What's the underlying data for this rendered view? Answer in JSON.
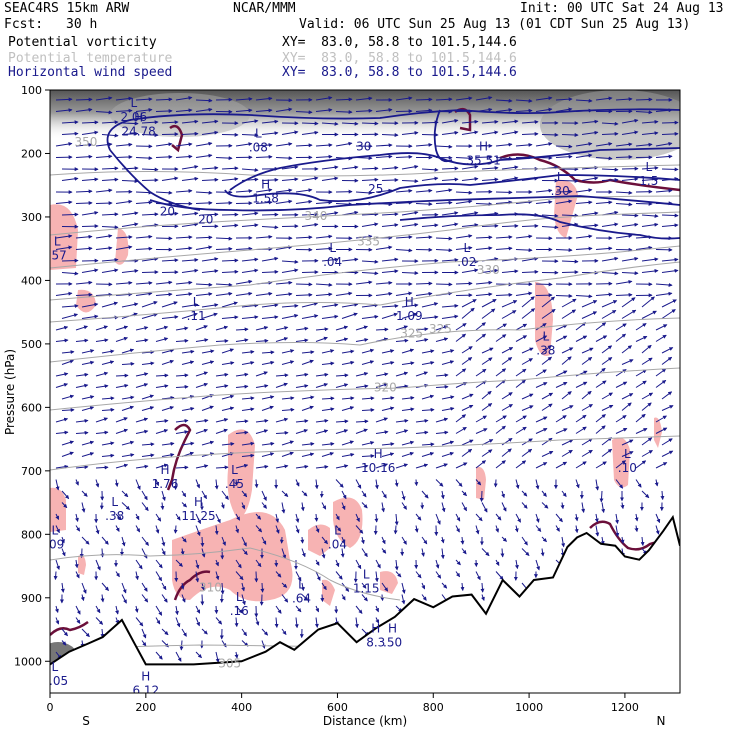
{
  "header": {
    "model": "SEAC4RS 15km ARW",
    "center": "NCAR/MMM",
    "init": "Init: 00 UTC Sat 24 Aug 13",
    "fcst_label": "Fcst:",
    "fcst_value": "30 h",
    "valid": "Valid: 06 UTC Sun 25 Aug 13 (01 CDT Sun 25 Aug 13)",
    "fields": [
      {
        "name": "Potential vorticity",
        "xy": "XY=  83.0, 58.8 to 101.5,144.6",
        "color": "#000000"
      },
      {
        "name": "Potential temperature",
        "xy": "XY=  83.0, 58.8 to 101.5,144.6",
        "color": "#c0c0c0"
      },
      {
        "name": "Horizontal wind speed",
        "xy": "XY=  83.0, 58.8 to 101.5,144.6",
        "color": "#1a1a8c"
      }
    ]
  },
  "chart_data": {
    "type": "cross-section",
    "xlabel": "Distance (km)",
    "ylabel": "Pressure (hPa)",
    "xlim": [
      0,
      1315
    ],
    "ylim": [
      1050,
      100
    ],
    "x_ticks": [
      0,
      200,
      400,
      600,
      800,
      1000,
      1200
    ],
    "y_ticks": [
      100,
      200,
      300,
      400,
      500,
      600,
      700,
      800,
      900,
      1000
    ],
    "end_labels": {
      "left": "S",
      "right": "N"
    },
    "colors": {
      "pv_fill": "#f7b3b3",
      "pv_line": "#6b0f3a",
      "wind": "#1a1a8c",
      "theta": "#a8a8a8",
      "terrain": "#000000"
    },
    "terrain": [
      [
        0,
        1005
      ],
      [
        40,
        985
      ],
      [
        80,
        972
      ],
      [
        110,
        962
      ],
      [
        150,
        935
      ],
      [
        175,
        970
      ],
      [
        200,
        1005
      ],
      [
        300,
        1005
      ],
      [
        400,
        1000
      ],
      [
        450,
        985
      ],
      [
        480,
        970
      ],
      [
        510,
        982
      ],
      [
        560,
        950
      ],
      [
        600,
        940
      ],
      [
        640,
        970
      ],
      [
        680,
        948
      ],
      [
        720,
        930
      ],
      [
        760,
        902
      ],
      [
        800,
        915
      ],
      [
        840,
        898
      ],
      [
        880,
        895
      ],
      [
        910,
        925
      ],
      [
        945,
        872
      ],
      [
        980,
        898
      ],
      [
        1010,
        872
      ],
      [
        1050,
        868
      ],
      [
        1080,
        820
      ],
      [
        1100,
        805
      ],
      [
        1120,
        798
      ],
      [
        1150,
        815
      ],
      [
        1180,
        818
      ],
      [
        1200,
        835
      ],
      [
        1230,
        840
      ],
      [
        1250,
        825
      ],
      [
        1280,
        795
      ],
      [
        1300,
        773
      ],
      [
        1315,
        818
      ]
    ],
    "pv_highs_lows": [
      {
        "t": "L",
        "v": "2.06",
        "x": 175,
        "p": 127
      },
      {
        "t": "H",
        "v": "24.78",
        "x": 185,
        "p": 150
      },
      {
        "t": "L",
        "v": ".08",
        "x": 435,
        "p": 175
      },
      {
        "t": "H",
        "v": "1.58",
        "x": 450,
        "p": 255
      },
      {
        "t": "H",
        "v": "35.51",
        "x": 905,
        "p": 195
      },
      {
        "t": "L",
        "v": "1.5",
        "x": 1250,
        "p": 228
      },
      {
        "t": "L",
        "v": ".30",
        "x": 1065,
        "p": 243
      },
      {
        "t": "L",
        "v": ".57",
        "x": 15,
        "p": 345
      },
      {
        "t": "L",
        "v": ".04",
        "x": 590,
        "p": 355
      },
      {
        "t": "L",
        "v": ".02",
        "x": 870,
        "p": 355
      },
      {
        "t": "L",
        "v": ".11",
        "x": 305,
        "p": 440
      },
      {
        "t": "H",
        "v": "1.09",
        "x": 750,
        "p": 440
      },
      {
        "t": "L",
        "v": ".38",
        "x": 1035,
        "p": 495
      },
      {
        "t": "H",
        "v": "10.16",
        "x": 685,
        "p": 680
      },
      {
        "t": "L",
        "v": ".10",
        "x": 1205,
        "p": 680
      },
      {
        "t": "H",
        "v": "1.76",
        "x": 240,
        "p": 705
      },
      {
        "t": "L",
        "v": ".45",
        "x": 385,
        "p": 705
      },
      {
        "t": "L",
        "v": ".38",
        "x": 135,
        "p": 755
      },
      {
        "t": "H",
        "v": "11.25",
        "x": 310,
        "p": 755
      },
      {
        "t": "L",
        "v": ".09",
        "x": 10,
        "p": 800
      },
      {
        "t": "L",
        "v": ".04",
        "x": 600,
        "p": 800
      },
      {
        "t": "L",
        "v": "1.15",
        "x": 660,
        "p": 870
      },
      {
        "t": "L",
        "v": ".64",
        "x": 525,
        "p": 885
      },
      {
        "t": "L",
        "v": ".16",
        "x": 395,
        "p": 905
      },
      {
        "t": "H",
        "v": "8.3",
        "x": 680,
        "p": 955
      },
      {
        "t": "H",
        "v": ".50",
        "x": 715,
        "p": 955
      },
      {
        "t": "H",
        "v": "6.12",
        "x": 200,
        "p": 1030
      },
      {
        "t": "L",
        "v": "7.05",
        "x": 10,
        "p": 1015
      }
    ],
    "theta_labels": [
      {
        "v": "350",
        "x": 75,
        "p": 188
      },
      {
        "v": "340",
        "x": 555,
        "p": 305
      },
      {
        "v": "335",
        "x": 665,
        "p": 345
      },
      {
        "v": "330",
        "x": 915,
        "p": 390
      },
      {
        "v": "325",
        "x": 755,
        "p": 490
      },
      {
        "v": "325",
        "x": 815,
        "p": 483
      },
      {
        "v": "320",
        "x": 700,
        "p": 575
      },
      {
        "v": "310",
        "x": 335,
        "p": 890
      },
      {
        "v": "305",
        "x": 375,
        "p": 1010
      }
    ],
    "speed_labels": [
      {
        "v": "30",
        "x": 655,
        "p": 195
      },
      {
        "v": "25",
        "x": 680,
        "p": 262
      },
      {
        "v": "20",
        "x": 245,
        "p": 298
      },
      {
        "v": "20",
        "x": 325,
        "p": 310
      }
    ]
  }
}
